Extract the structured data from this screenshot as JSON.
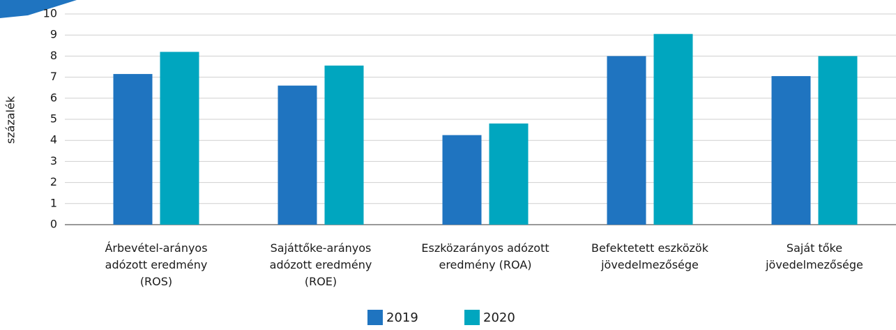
{
  "chart_data": {
    "type": "bar",
    "y_label": "százalék",
    "categories": [
      "Árbevétel-arányos\nadózott eredmény\n(ROS)",
      "Sajáttőke-arányos\nadózott eredmény\n(ROE)",
      "Eszközarányos adózott\neredmény (ROA)",
      "Befektetett eszközök\njövedelmezősége",
      "Saját tőke\njövedelmezősége"
    ],
    "series": [
      {
        "name": "2019",
        "color": "#1f74c0",
        "values": [
          7.15,
          6.6,
          4.25,
          8.0,
          7.05
        ]
      },
      {
        "name": "2020",
        "color": "#00a6bf",
        "values": [
          8.2,
          7.55,
          4.8,
          9.05,
          8.0
        ]
      }
    ],
    "ylim": [
      0,
      10
    ],
    "yticks": [
      0,
      1,
      2,
      3,
      4,
      5,
      6,
      7,
      8,
      9,
      10
    ],
    "grid": true,
    "legend": "bottom"
  }
}
